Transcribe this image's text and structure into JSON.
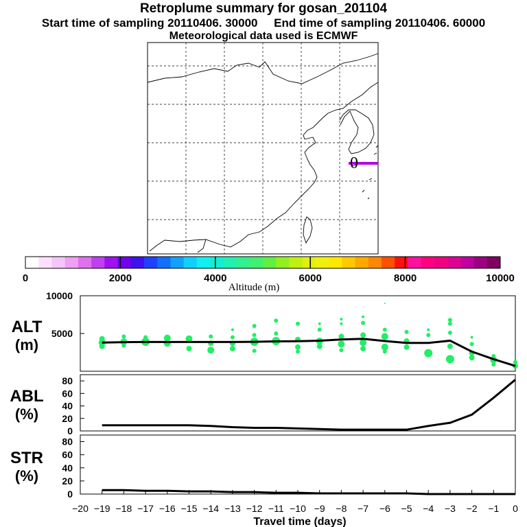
{
  "header": {
    "title": "Retroplume summary for gosan_201104",
    "sampling_line": "Start time of sampling 20110406. 30000     End time of sampling 20110406. 60000",
    "met_line": "Meteorological data used is ECMWF"
  },
  "chart_data": [
    {
      "type": "map",
      "name": "retroplume-map",
      "marker_label": "0",
      "plume_color": "#b400e6"
    },
    {
      "type": "colorbar",
      "label": "Altitude (m)",
      "ticks": [
        "0",
        "2000",
        "4000",
        "6000",
        "8000",
        "10000"
      ],
      "range": [
        0,
        10000
      ],
      "colors": [
        "#ffffff",
        "#fde0fd",
        "#f6c4f8",
        "#f0a0f4",
        "#e070f0",
        "#c040f0",
        "#a010f0",
        "#7000f0",
        "#4010f0",
        "#2040ff",
        "#1070ff",
        "#10a0ff",
        "#10d0ff",
        "#10f0f0",
        "#10f0d0",
        "#20f0b0",
        "#30f090",
        "#40f070",
        "#60f040",
        "#90f020",
        "#c0f010",
        "#e0f010",
        "#f0f010",
        "#ffe800",
        "#ffc800",
        "#ffa800",
        "#ff8800",
        "#ff5000",
        "#ff1010",
        "#ff10a0",
        "#ff0080",
        "#f00080",
        "#e00090",
        "#c000a0",
        "#9c0080",
        "#800060"
      ]
    },
    {
      "type": "line",
      "panel": "ALT",
      "ylabel": [
        "ALT",
        "(m)"
      ],
      "ylim": [
        0,
        10000
      ],
      "yticks": [
        "5000",
        "10000"
      ],
      "x": [
        -19,
        -18,
        -17,
        -16,
        -15,
        -14,
        -13,
        -12,
        -11,
        -10,
        -9,
        -8,
        -7,
        -6,
        -5,
        -4,
        -3,
        -2,
        -1,
        0
      ],
      "values": [
        3800,
        3850,
        3880,
        3880,
        3870,
        3870,
        3880,
        3900,
        3950,
        3980,
        4050,
        4200,
        4300,
        4000,
        3750,
        3750,
        4050,
        2600,
        1600,
        700
      ],
      "scatter": [
        {
          "x": -19,
          "y": 4300,
          "r": 4
        },
        {
          "x": -19,
          "y": 3800,
          "r": 5
        },
        {
          "x": -19,
          "y": 3300,
          "r": 4
        },
        {
          "x": -18,
          "y": 4600,
          "r": 3
        },
        {
          "x": -18,
          "y": 3900,
          "r": 5
        },
        {
          "x": -18,
          "y": 3400,
          "r": 3
        },
        {
          "x": -17,
          "y": 4500,
          "r": 3
        },
        {
          "x": -17,
          "y": 3900,
          "r": 6
        },
        {
          "x": -16,
          "y": 4400,
          "r": 5
        },
        {
          "x": -16,
          "y": 3700,
          "r": 5
        },
        {
          "x": -15,
          "y": 4300,
          "r": 5
        },
        {
          "x": -15,
          "y": 3000,
          "r": 4
        },
        {
          "x": -14,
          "y": 4600,
          "r": 3
        },
        {
          "x": -14,
          "y": 3700,
          "r": 4
        },
        {
          "x": -14,
          "y": 2800,
          "r": 5
        },
        {
          "x": -13,
          "y": 5500,
          "r": 2
        },
        {
          "x": -13,
          "y": 4500,
          "r": 3
        },
        {
          "x": -13,
          "y": 3700,
          "r": 4
        },
        {
          "x": -13,
          "y": 3000,
          "r": 4
        },
        {
          "x": -12,
          "y": 6000,
          "r": 3
        },
        {
          "x": -12,
          "y": 4800,
          "r": 3
        },
        {
          "x": -12,
          "y": 3900,
          "r": 6
        },
        {
          "x": -12,
          "y": 2700,
          "r": 3
        },
        {
          "x": -11,
          "y": 6700,
          "r": 3
        },
        {
          "x": -11,
          "y": 5000,
          "r": 3
        },
        {
          "x": -11,
          "y": 4000,
          "r": 6
        },
        {
          "x": -10,
          "y": 6300,
          "r": 3
        },
        {
          "x": -10,
          "y": 4200,
          "r": 4
        },
        {
          "x": -10,
          "y": 3200,
          "r": 4
        },
        {
          "x": -10,
          "y": 2600,
          "r": 3
        },
        {
          "x": -9,
          "y": 6300,
          "r": 2
        },
        {
          "x": -9,
          "y": 5500,
          "r": 3
        },
        {
          "x": -9,
          "y": 4000,
          "r": 5
        },
        {
          "x": -9,
          "y": 3300,
          "r": 4
        },
        {
          "x": -8,
          "y": 6900,
          "r": 2
        },
        {
          "x": -8,
          "y": 6300,
          "r": 2
        },
        {
          "x": -8,
          "y": 4600,
          "r": 4
        },
        {
          "x": -8,
          "y": 3600,
          "r": 5
        },
        {
          "x": -8,
          "y": 2800,
          "r": 3
        },
        {
          "x": -7,
          "y": 7200,
          "r": 2
        },
        {
          "x": -7,
          "y": 6400,
          "r": 3
        },
        {
          "x": -7,
          "y": 4800,
          "r": 4
        },
        {
          "x": -7,
          "y": 3800,
          "r": 5
        },
        {
          "x": -7,
          "y": 3000,
          "r": 4
        },
        {
          "x": -6,
          "y": 9000,
          "r": 1
        },
        {
          "x": -6,
          "y": 5500,
          "r": 3
        },
        {
          "x": -6,
          "y": 4600,
          "r": 5
        },
        {
          "x": -6,
          "y": 3200,
          "r": 5
        },
        {
          "x": -6,
          "y": 2600,
          "r": 3
        },
        {
          "x": -5,
          "y": 5200,
          "r": 3
        },
        {
          "x": -5,
          "y": 4000,
          "r": 4
        },
        {
          "x": -5,
          "y": 3200,
          "r": 4
        },
        {
          "x": -4,
          "y": 5500,
          "r": 2
        },
        {
          "x": -4,
          "y": 4800,
          "r": 3
        },
        {
          "x": -4,
          "y": 2400,
          "r": 6
        },
        {
          "x": -3,
          "y": 6800,
          "r": 3
        },
        {
          "x": -3,
          "y": 6300,
          "r": 3
        },
        {
          "x": -3,
          "y": 5100,
          "r": 3
        },
        {
          "x": -3,
          "y": 3300,
          "r": 4
        },
        {
          "x": -3,
          "y": 1600,
          "r": 6
        },
        {
          "x": -2,
          "y": 4500,
          "r": 2
        },
        {
          "x": -2,
          "y": 3600,
          "r": 3
        },
        {
          "x": -2,
          "y": 2400,
          "r": 4
        },
        {
          "x": -2,
          "y": 1800,
          "r": 4
        },
        {
          "x": -1,
          "y": 2000,
          "r": 3
        },
        {
          "x": -1,
          "y": 1500,
          "r": 5
        },
        {
          "x": -1,
          "y": 900,
          "r": 3
        },
        {
          "x": 0,
          "y": 1200,
          "r": 3
        },
        {
          "x": 0,
          "y": 700,
          "r": 4
        }
      ]
    },
    {
      "type": "line",
      "panel": "ABL",
      "ylabel": [
        "ABL",
        "(%)"
      ],
      "ylim": [
        0,
        90
      ],
      "yticks": [
        "0",
        "20",
        "40",
        "60",
        "80"
      ],
      "x": [
        -19,
        -18,
        -17,
        -16,
        -15,
        -14,
        -13,
        -12,
        -11,
        -10,
        -9,
        -8,
        -7,
        -6,
        -5,
        -4,
        -3,
        -2,
        -1,
        0
      ],
      "values": [
        9,
        9,
        9,
        9,
        9,
        8,
        6,
        5,
        5,
        4,
        3,
        2,
        2,
        2,
        2,
        8,
        13,
        26,
        53,
        82
      ]
    },
    {
      "type": "line",
      "panel": "STR",
      "ylabel": [
        "STR",
        "(%)"
      ],
      "ylim": [
        0,
        90
      ],
      "yticks": [
        "0",
        "20",
        "40",
        "60",
        "80"
      ],
      "x": [
        -19,
        -18,
        -17,
        -16,
        -15,
        -14,
        -13,
        -12,
        -11,
        -10,
        -9,
        -8,
        -7,
        -6,
        -5,
        -4,
        -3,
        -2,
        -1,
        0
      ],
      "values": [
        6,
        6,
        5,
        5,
        4,
        4,
        3,
        3,
        2,
        2,
        1,
        1,
        1,
        1,
        1,
        0,
        0,
        0,
        0,
        0
      ]
    }
  ],
  "xaxis": {
    "label": "Travel time (days)",
    "ticks": [
      "−20",
      "−19",
      "−18",
      "−17",
      "−16",
      "−15",
      "−14",
      "−13",
      "−12",
      "−11",
      "−10",
      "−9",
      "−8",
      "−7",
      "−6",
      "−5",
      "−4",
      "−3",
      "−2",
      "−1",
      "0"
    ],
    "range": [
      -20,
      0
    ]
  }
}
